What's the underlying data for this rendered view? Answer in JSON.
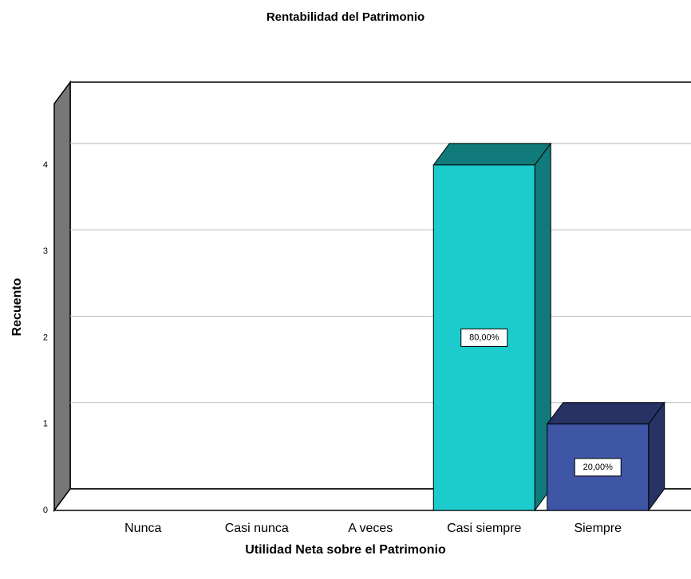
{
  "chart_data": {
    "type": "bar3d",
    "title": "Rentabilidad del Patrimonio",
    "x_label": "Utilidad Neta sobre el Patrimonio",
    "y_label": "Recuento",
    "categories": [
      "Nunca",
      "Casi nunca",
      "A veces",
      "Casi siempre",
      "Siempre"
    ],
    "values": [
      0,
      0,
      0,
      4,
      1
    ],
    "value_labels": [
      null,
      null,
      null,
      "80,00%",
      "20,00%"
    ],
    "colors": [
      null,
      null,
      null,
      "#1ccccc",
      "#3f55a6"
    ],
    "ylim": [
      0,
      4.71
    ],
    "yticks": [
      0,
      1,
      2,
      3,
      4
    ],
    "grid": true
  }
}
